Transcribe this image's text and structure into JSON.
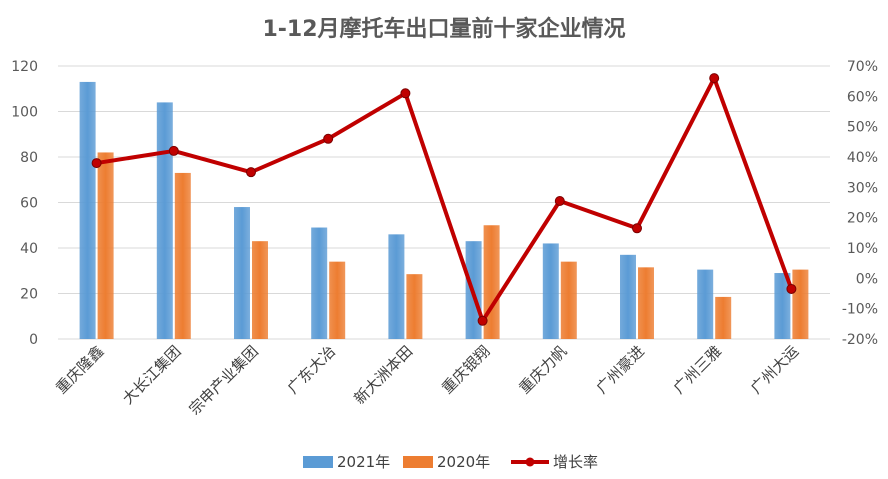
{
  "chart_data": {
    "type": "bar",
    "title": "1-12月摩托车出口量前十家企业情况",
    "categories": [
      "重庆隆鑫",
      "大长江集团",
      "宗申产业集团",
      "广东大冶",
      "新大洲本田",
      "重庆银翔",
      "重庆力帆",
      "广州豪进",
      "广州三雅",
      "广州大运"
    ],
    "series": [
      {
        "name": "2021年",
        "type": "bar",
        "axis": "left",
        "color": "#5b9bd5",
        "values": [
          113,
          104,
          58,
          49,
          46,
          43,
          42,
          37,
          30.5,
          29
        ]
      },
      {
        "name": "2020年",
        "type": "bar",
        "axis": "left",
        "color": "#ed7d31",
        "values": [
          82,
          73,
          43,
          34,
          28.5,
          50,
          34,
          31.5,
          18.5,
          30.5
        ]
      },
      {
        "name": "增长率",
        "type": "line",
        "axis": "right",
        "color": "#c00000",
        "values": [
          0.38,
          0.42,
          0.35,
          0.46,
          0.61,
          -0.14,
          0.255,
          0.165,
          0.66,
          -0.035
        ]
      }
    ],
    "left_axis": {
      "min": 0,
      "max": 120,
      "step": 20,
      "ticks": [
        "0",
        "20",
        "40",
        "60",
        "80",
        "100",
        "120"
      ]
    },
    "right_axis": {
      "min": -0.2,
      "max": 0.7,
      "step": 0.1,
      "ticks": [
        "-20%",
        "-10%",
        "0%",
        "10%",
        "20%",
        "30%",
        "40%",
        "50%",
        "60%",
        "70%"
      ]
    },
    "grid": true,
    "legend_position": "bottom"
  }
}
